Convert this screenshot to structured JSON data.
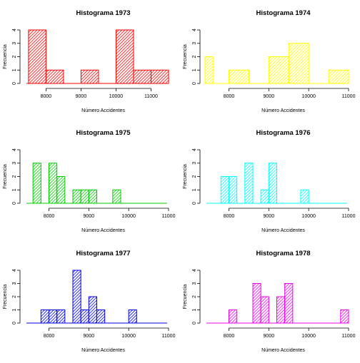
{
  "figure": {
    "xlabel": "Número Accidentes",
    "ylabel": "Frecuencia"
  },
  "chart_data": [
    {
      "type": "bar",
      "title": "Histograma 1973",
      "xlabel": "Número Accidentes",
      "ylabel": "Frecuencia",
      "color": "#ff0000",
      "xlim": [
        7400,
        11500
      ],
      "ylim": [
        0,
        4
      ],
      "xticks": [
        8000,
        9000,
        10000,
        11000
      ],
      "yticks": [
        0,
        1,
        2,
        3,
        4
      ],
      "bins": [
        {
          "x0": 7500,
          "x1": 8000,
          "count": 4
        },
        {
          "x0": 8000,
          "x1": 8500,
          "count": 1
        },
        {
          "x0": 8500,
          "x1": 9000,
          "count": 0
        },
        {
          "x0": 9000,
          "x1": 9500,
          "count": 1
        },
        {
          "x0": 9500,
          "x1": 10000,
          "count": 0
        },
        {
          "x0": 10000,
          "x1": 10500,
          "count": 4
        },
        {
          "x0": 10500,
          "x1": 11000,
          "count": 1
        },
        {
          "x0": 11000,
          "x1": 11500,
          "count": 1
        }
      ]
    },
    {
      "type": "bar",
      "title": "Histograma 1974",
      "xlabel": "Número Accidentes",
      "ylabel": "Frecuencia",
      "color": "#ffff00",
      "xlim": [
        7400,
        11000
      ],
      "ylim": [
        0,
        4
      ],
      "xticks": [
        8000,
        9000,
        10000,
        11000
      ],
      "yticks": [
        0,
        1,
        2,
        3,
        4
      ],
      "bins": [
        {
          "x0": 7400,
          "x1": 7600,
          "count": 2
        },
        {
          "x0": 7600,
          "x1": 8000,
          "count": 0
        },
        {
          "x0": 8000,
          "x1": 8500,
          "count": 1
        },
        {
          "x0": 8500,
          "x1": 9000,
          "count": 0
        },
        {
          "x0": 9000,
          "x1": 9500,
          "count": 2
        },
        {
          "x0": 9500,
          "x1": 10000,
          "count": 3
        },
        {
          "x0": 10000,
          "x1": 10500,
          "count": 0
        },
        {
          "x0": 10500,
          "x1": 11000,
          "count": 1
        }
      ]
    },
    {
      "type": "bar",
      "title": "Histograma 1975",
      "xlabel": "Número Accidentes",
      "ylabel": "Frecuencia",
      "color": "#00cc00",
      "xlim": [
        7400,
        11000
      ],
      "ylim": [
        0,
        4
      ],
      "xticks": [
        8000,
        9000,
        10000,
        11000
      ],
      "yticks": [
        0,
        1,
        2,
        3,
        4
      ],
      "bins": [
        {
          "x0": 7600,
          "x1": 7800,
          "count": 3
        },
        {
          "x0": 7800,
          "x1": 8000,
          "count": 0
        },
        {
          "x0": 8000,
          "x1": 8200,
          "count": 3
        },
        {
          "x0": 8200,
          "x1": 8400,
          "count": 2
        },
        {
          "x0": 8400,
          "x1": 8600,
          "count": 0
        },
        {
          "x0": 8600,
          "x1": 8800,
          "count": 1
        },
        {
          "x0": 8800,
          "x1": 9000,
          "count": 1
        },
        {
          "x0": 9000,
          "x1": 9200,
          "count": 1
        },
        {
          "x0": 9200,
          "x1": 9400,
          "count": 0
        },
        {
          "x0": 9400,
          "x1": 9600,
          "count": 0
        },
        {
          "x0": 9600,
          "x1": 9800,
          "count": 1
        }
      ]
    },
    {
      "type": "bar",
      "title": "Histograma 1976",
      "xlabel": "Número Accidentes",
      "ylabel": "Frecuencia",
      "color": "#00ffff",
      "xlim": [
        7400,
        11000
      ],
      "ylim": [
        0,
        4
      ],
      "xticks": [
        8000,
        9000,
        10000,
        11000
      ],
      "yticks": [
        0,
        1,
        2,
        3,
        4
      ],
      "bins": [
        {
          "x0": 7800,
          "x1": 8000,
          "count": 2
        },
        {
          "x0": 8000,
          "x1": 8200,
          "count": 2
        },
        {
          "x0": 8200,
          "x1": 8400,
          "count": 0
        },
        {
          "x0": 8400,
          "x1": 8600,
          "count": 3
        },
        {
          "x0": 8600,
          "x1": 8800,
          "count": 0
        },
        {
          "x0": 8800,
          "x1": 9000,
          "count": 1
        },
        {
          "x0": 9000,
          "x1": 9200,
          "count": 3
        },
        {
          "x0": 9200,
          "x1": 9400,
          "count": 0
        },
        {
          "x0": 9400,
          "x1": 9600,
          "count": 0
        },
        {
          "x0": 9600,
          "x1": 9800,
          "count": 0
        },
        {
          "x0": 9800,
          "x1": 10000,
          "count": 1
        }
      ]
    },
    {
      "type": "bar",
      "title": "Histograma 1977",
      "xlabel": "Número Accidentes",
      "ylabel": "Frecuencia",
      "color": "#0000ee",
      "xlim": [
        7400,
        11000
      ],
      "ylim": [
        0,
        4
      ],
      "xticks": [
        8000,
        9000,
        10000,
        11000
      ],
      "yticks": [
        0,
        1,
        2,
        3,
        4
      ],
      "bins": [
        {
          "x0": 7800,
          "x1": 8000,
          "count": 1
        },
        {
          "x0": 8000,
          "x1": 8200,
          "count": 1
        },
        {
          "x0": 8200,
          "x1": 8400,
          "count": 1
        },
        {
          "x0": 8400,
          "x1": 8600,
          "count": 0
        },
        {
          "x0": 8600,
          "x1": 8800,
          "count": 4
        },
        {
          "x0": 8800,
          "x1": 9000,
          "count": 1
        },
        {
          "x0": 9000,
          "x1": 9200,
          "count": 2
        },
        {
          "x0": 9200,
          "x1": 9400,
          "count": 1
        },
        {
          "x0": 9400,
          "x1": 9600,
          "count": 0
        },
        {
          "x0": 9600,
          "x1": 9800,
          "count": 0
        },
        {
          "x0": 9800,
          "x1": 10000,
          "count": 0
        },
        {
          "x0": 10000,
          "x1": 10200,
          "count": 1
        }
      ]
    },
    {
      "type": "bar",
      "title": "Histograma 1978",
      "xlabel": "Número Accidentes",
      "ylabel": "Frecuencia",
      "color": "#ee00ee",
      "xlim": [
        7400,
        11000
      ],
      "ylim": [
        0,
        4
      ],
      "xticks": [
        8000,
        9000,
        10000,
        11000
      ],
      "yticks": [
        0,
        1,
        2,
        3,
        4
      ],
      "bins": [
        {
          "x0": 8000,
          "x1": 8200,
          "count": 1
        },
        {
          "x0": 8200,
          "x1": 8400,
          "count": 0
        },
        {
          "x0": 8400,
          "x1": 8600,
          "count": 0
        },
        {
          "x0": 8600,
          "x1": 8800,
          "count": 3
        },
        {
          "x0": 8800,
          "x1": 9000,
          "count": 2
        },
        {
          "x0": 9000,
          "x1": 9200,
          "count": 0
        },
        {
          "x0": 9200,
          "x1": 9400,
          "count": 2
        },
        {
          "x0": 9400,
          "x1": 9600,
          "count": 3
        },
        {
          "x0": 9600,
          "x1": 9800,
          "count": 0
        },
        {
          "x0": 9800,
          "x1": 10000,
          "count": 0
        },
        {
          "x0": 10000,
          "x1": 10200,
          "count": 0
        },
        {
          "x0": 10200,
          "x1": 10400,
          "count": 0
        },
        {
          "x0": 10400,
          "x1": 10600,
          "count": 0
        },
        {
          "x0": 10600,
          "x1": 10800,
          "count": 0
        },
        {
          "x0": 10800,
          "x1": 11000,
          "count": 1
        }
      ]
    }
  ]
}
